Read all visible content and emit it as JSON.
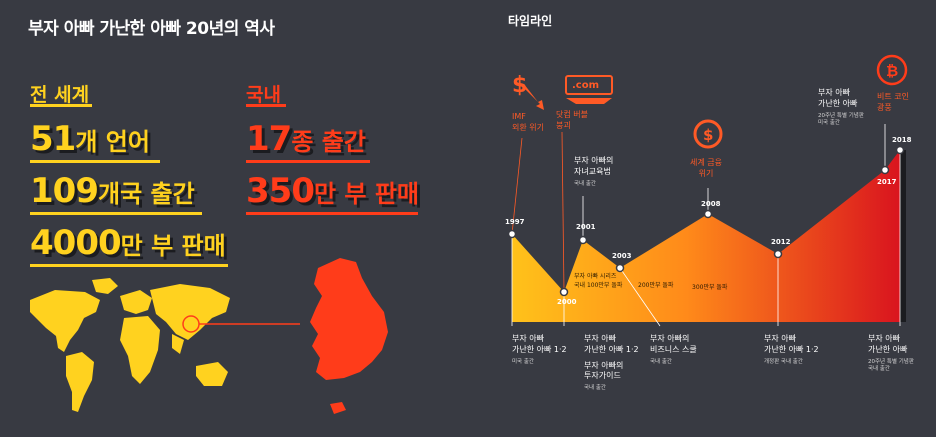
{
  "header": {
    "title": "부자 아빠 가난한 아빠 20년의 역사",
    "timeline_title": "타임라인"
  },
  "world": {
    "label": "전 세계",
    "stats": [
      {
        "num": "51",
        "unit": "개 언어"
      },
      {
        "num": "109",
        "unit": "개국 출간"
      },
      {
        "num": "4000",
        "unit": "만 부 판매"
      }
    ]
  },
  "domestic": {
    "label": "국내",
    "stats": [
      {
        "num": "17",
        "unit": "종 출간"
      },
      {
        "num": "350",
        "unit": "만 부 판매"
      }
    ]
  },
  "timeline": {
    "events": {
      "imf": "IMF\n외환 위기",
      "dotcom": "닷컴 버블\n붕괴",
      "dotcom_icon": ".com",
      "crisis2008": "세계 금융\n위기",
      "bitcoin": "비트 코인\n광풍"
    },
    "years": [
      "1997",
      "2000",
      "2001",
      "2003",
      "2008",
      "2012",
      "2017",
      "2018"
    ],
    "notes": {
      "series": "부자 아빠 시리즈\n국내 100만부 돌파",
      "n200": "200만부 돌파",
      "n300": "300만부 돌파"
    },
    "books": {
      "b1997": {
        "title": "부자 아빠\n가난한 아빠 1·2",
        "sub": "미국 출간"
      },
      "b2000": {
        "title": "부자 아빠\n가난한 아빠 1·2",
        "sub": ""
      },
      "b2000b": {
        "title": "부자 아빠의\n투자가이드",
        "sub": "국내 출간"
      },
      "b2001": {
        "title": "부자 아빠의\n자녀교육법",
        "sub": "국내 출간"
      },
      "b2003": {
        "title": "부자 아빠의\n비즈니스 스쿨",
        "sub": "국내 출간"
      },
      "b2012": {
        "title": "부자 아빠\n가난한 아빠 1·2",
        "sub": "개정판 국내 출간"
      },
      "b2017": {
        "title": "부자 아빠\n가난한 아빠",
        "sub": "20주년 특별 기념판\n미국 출간"
      },
      "b2018": {
        "title": "부자 아빠\n가난한 아빠",
        "sub": "20주년 특별 기념판\n국내 출간"
      }
    }
  },
  "colors": {
    "background": "#383a42",
    "yellow": "#ffd21f",
    "red": "#ff3c1a",
    "orange": "#ff5a26"
  }
}
